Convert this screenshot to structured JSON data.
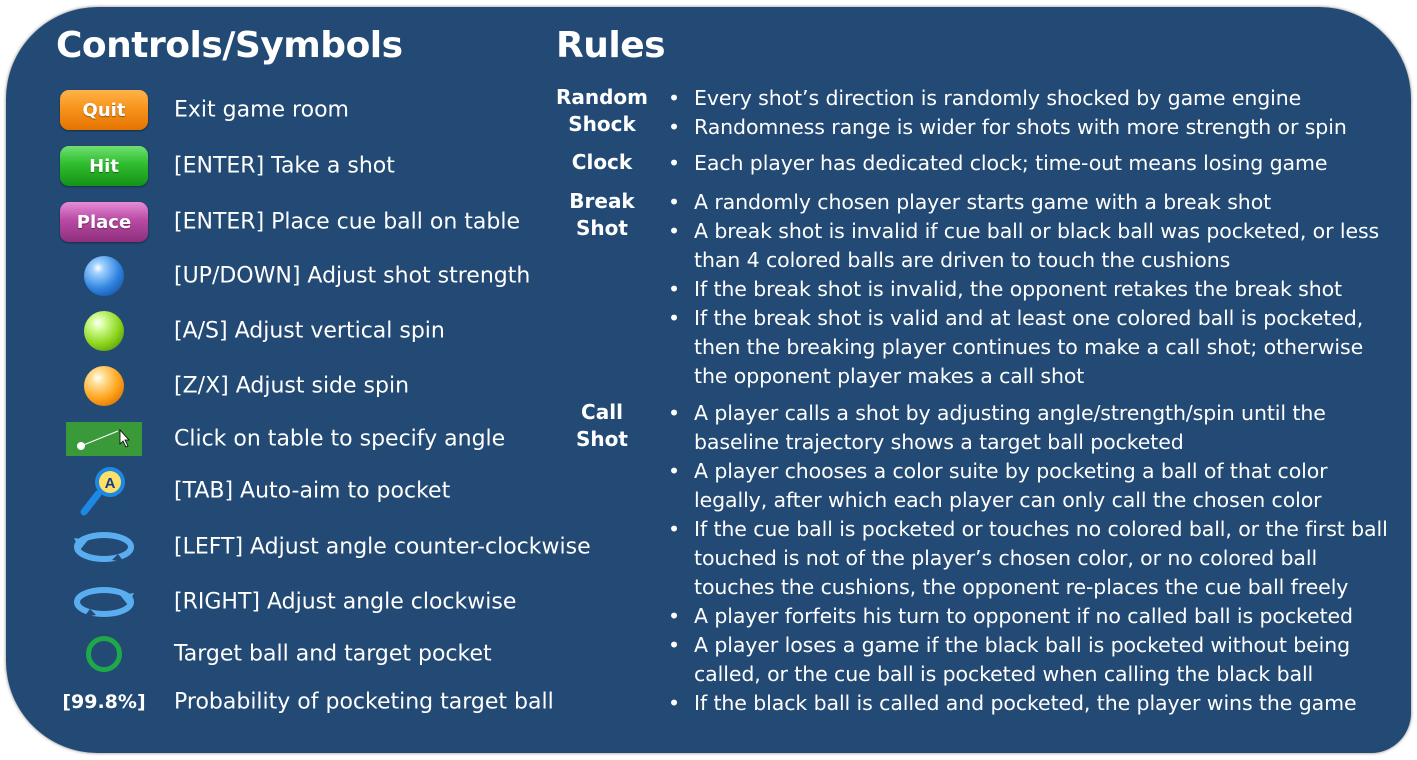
{
  "controls": {
    "title": "Controls/Symbols",
    "items": [
      {
        "icon": "quit-button",
        "icon_text": "Quit",
        "label": "Exit game room"
      },
      {
        "icon": "hit-button",
        "icon_text": "Hit",
        "label": "[ENTER] Take a shot"
      },
      {
        "icon": "place-button",
        "icon_text": "Place",
        "label": "[ENTER] Place cue ball on table"
      },
      {
        "icon": "blue-ball-icon",
        "label": "[UP/DOWN] Adjust shot strength"
      },
      {
        "icon": "green-ball-icon",
        "label": "[A/S] Adjust vertical spin"
      },
      {
        "icon": "orange-ball-icon",
        "label": "[Z/X] Adjust side spin"
      },
      {
        "icon": "table-click-icon",
        "label": "Click on table to specify angle"
      },
      {
        "icon": "auto-aim-icon",
        "icon_text": "A",
        "label": "[TAB] Auto-aim to pocket"
      },
      {
        "icon": "rotate-counter-clockwise-icon",
        "label": "[LEFT] Adjust angle counter-clockwise"
      },
      {
        "icon": "rotate-clockwise-icon",
        "label": "[RIGHT] Adjust angle clockwise"
      },
      {
        "icon": "target-circle-icon",
        "label": "Target ball and target pocket"
      },
      {
        "icon": "probability-text",
        "icon_text": "[99.8%]",
        "label": "Probability of pocketing target ball"
      }
    ]
  },
  "rules": {
    "title": "Rules",
    "groups": [
      {
        "category": "Random\nShock",
        "items": [
          "Every shot’s direction is randomly shocked by game engine",
          "Randomness range is wider for shots with more strength or spin"
        ]
      },
      {
        "category": "Clock",
        "items": [
          "Each player has dedicated clock; time-out means losing game"
        ]
      },
      {
        "category": "Break\nShot",
        "items": [
          "A randomly chosen player starts game with a break shot",
          "A break shot is invalid if cue ball or black ball was pocketed, or less than 4 colored balls are driven to touch the cushions",
          "If the break shot is invalid, the opponent retakes the break shot",
          "If the break shot is valid and at least one colored ball is pocketed, then the breaking player continues to make a call shot; otherwise the opponent player makes a call shot"
        ]
      },
      {
        "category": "Call\nShot",
        "items": [
          "A player calls a shot by adjusting angle/strength/spin until the baseline trajectory shows a target ball pocketed",
          "A player chooses a color suite by pocketing a ball of that color legally, after which each player can only call the chosen color",
          "If the cue ball is pocketed or touches no colored ball, or the first ball touched is not of the player’s chosen color, or no colored ball touches the cushions, the opponent re-places the cue ball freely",
          "A player forfeits his turn to opponent if no called ball is pocketed",
          "A player loses a game if the black ball is pocketed without being called, or the cue ball is pocketed when calling the black ball",
          "If the black ball is called and pocketed, the player wins the game"
        ]
      }
    ]
  },
  "colors": {
    "panel_background": "#234a74",
    "text": "#ffffff",
    "quit": "#f7941d",
    "hit": "#2fbd2f",
    "place": "#b94aa4",
    "target_circle": "#1fa84a",
    "auto_aim": "#1e88e5"
  }
}
